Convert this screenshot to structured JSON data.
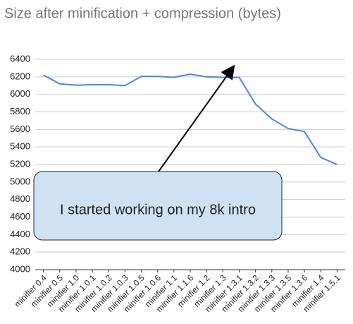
{
  "chart_data": {
    "type": "line",
    "title": "Size after minification + compression (bytes)",
    "categories": [
      "minifier 0.4",
      "minifier 0.5",
      "minifier 1.0",
      "minifier 1.0.1",
      "minifier 1.0.2",
      "minifier 1.0.3",
      "minifier 1.0.5",
      "minifier 1.0.6",
      "minifier 1.1",
      "minifier 1.1.6",
      "minifier 1.2",
      "minifier 1.3",
      "minifier 1.3.1",
      "minifier 1.3.2",
      "minifier 1.3.3",
      "minifier 1.3.5",
      "minifier 1.3.6",
      "minifier 1.4",
      "minifier 1.5.1"
    ],
    "series": [
      {
        "name": "Size",
        "color": "#4a86e8",
        "values": [
          6220,
          6120,
          6105,
          6110,
          6110,
          6100,
          6205,
          6205,
          6195,
          6230,
          6200,
          6195,
          6195,
          5890,
          5720,
          5610,
          5575,
          5280,
          5200
        ]
      }
    ],
    "ylim": [
      4000,
      6400
    ],
    "yticks": [
      4000,
      4200,
      4400,
      4600,
      4800,
      5000,
      5200,
      5400,
      5600,
      5800,
      6000,
      6200,
      6400
    ],
    "grid": true,
    "annotation": "I started working on my 8k intro"
  }
}
